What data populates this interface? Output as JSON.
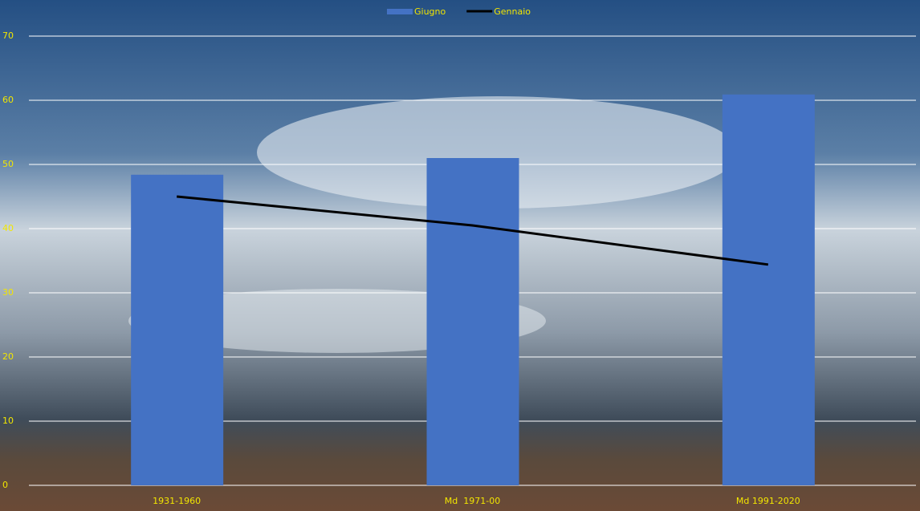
{
  "chart_data": {
    "type": "combo",
    "categories": [
      "1931-1960",
      "Md  1971-00",
      "Md 1991-2020"
    ],
    "series": [
      {
        "name": "Giugno",
        "type": "bar",
        "color": "#4472c4",
        "values": [
          48.4,
          51,
          60.9
        ]
      },
      {
        "name": "Gennaio",
        "type": "line",
        "color": "#000000",
        "values": [
          45,
          40.5,
          34.4
        ]
      }
    ],
    "ylim": [
      0,
      70
    ],
    "yticks": [
      0,
      10,
      20,
      30,
      40,
      50,
      60,
      70
    ],
    "grid": true,
    "legend": "top"
  }
}
